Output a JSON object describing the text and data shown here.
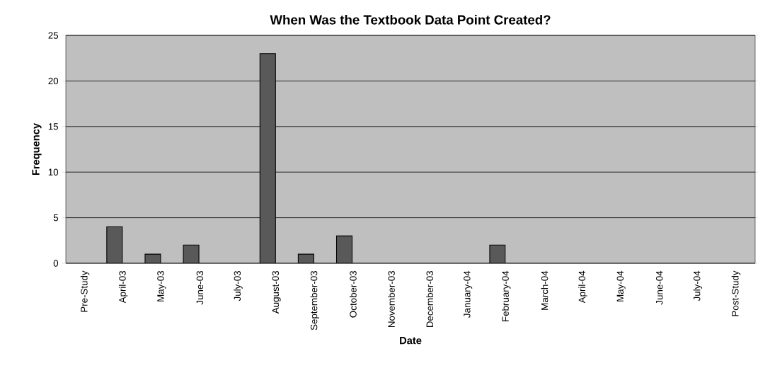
{
  "chart_data": {
    "type": "bar",
    "title": "When Was the Textbook Data Point Created?",
    "xlabel": "Date",
    "ylabel": "Frequency",
    "categories": [
      "Pre-Study",
      "April-03",
      "May-03",
      "June-03",
      "July-03",
      "August-03",
      "September-03",
      "October-03",
      "November-03",
      "December-03",
      "January-04",
      "February-04",
      "March-04",
      "April-04",
      "May-04",
      "June-04",
      "July-04",
      "Post-Study"
    ],
    "values": [
      0,
      4,
      1,
      2,
      0,
      23,
      1,
      3,
      0,
      0,
      0,
      2,
      0,
      0,
      0,
      0,
      0,
      0
    ],
    "color": "#595959",
    "ylim": [
      0,
      25
    ],
    "yticks": [
      0,
      5,
      10,
      15,
      20,
      25
    ],
    "grid": "y"
  }
}
